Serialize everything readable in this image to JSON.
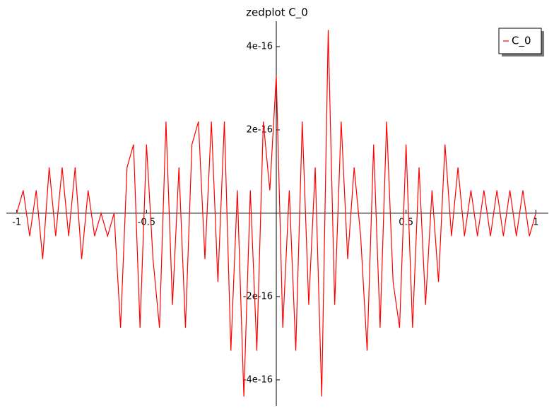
{
  "chart_data": {
    "type": "line",
    "title": "zedplot C_0",
    "x": [
      -1,
      -0.975,
      -0.95,
      -0.925,
      -0.9,
      -0.875,
      -0.85,
      -0.825,
      -0.8,
      -0.775,
      -0.75,
      -0.725,
      -0.7,
      -0.675,
      -0.65,
      -0.625,
      -0.6,
      -0.575,
      -0.55,
      -0.525,
      -0.5,
      -0.475,
      -0.45,
      -0.425,
      -0.4,
      -0.375,
      -0.35,
      -0.325,
      -0.3,
      -0.275,
      -0.25,
      -0.225,
      -0.2,
      -0.175,
      -0.15,
      -0.125,
      -0.1,
      -0.075,
      -0.05,
      -0.025,
      0,
      0.025,
      0.05,
      0.075,
      0.1,
      0.125,
      0.15,
      0.175,
      0.2,
      0.225,
      0.25,
      0.275,
      0.3,
      0.325,
      0.35,
      0.375,
      0.4,
      0.425,
      0.45,
      0.475,
      0.5,
      0.525,
      0.55,
      0.575,
      0.6,
      0.625,
      0.65,
      0.675,
      0.7,
      0.725,
      0.75,
      0.775,
      0.8,
      0.825,
      0.85,
      0.875,
      0.9,
      0.925,
      0.95,
      0.975,
      1
    ],
    "series": [
      {
        "name": "C_0",
        "color": "#ff0000",
        "values": [
          0,
          5.5e-17,
          -5.5e-17,
          5.5e-17,
          -1.1e-16,
          1.1e-16,
          -5.5e-17,
          1.1e-16,
          -5.5e-17,
          1.1e-16,
          -1.1e-16,
          5.5e-17,
          -5.5e-17,
          0,
          -5.5e-17,
          0,
          -2.75e-16,
          1.1e-16,
          1.65e-16,
          -2.75e-16,
          1.65e-16,
          -1.1e-16,
          -2.75e-16,
          2.2e-16,
          -2.2e-16,
          1.1e-16,
          -2.75e-16,
          1.65e-16,
          2.2e-16,
          -1.1e-16,
          2.2e-16,
          -1.65e-16,
          2.2e-16,
          -3.3e-16,
          5.5e-17,
          -4.4e-16,
          5.5e-17,
          -3.3e-16,
          2.2e-16,
          5.5e-17,
          3.3e-16,
          -2.75e-16,
          5.5e-17,
          -3.3e-16,
          2.2e-16,
          -2.2e-16,
          1.1e-16,
          -4.4e-16,
          4.4e-16,
          -2.2e-16,
          2.2e-16,
          -1.1e-16,
          1.1e-16,
          -5.5e-17,
          -3.3e-16,
          1.65e-16,
          -2.75e-16,
          2.2e-16,
          -1.65e-16,
          -2.75e-16,
          1.65e-16,
          -2.75e-16,
          1.1e-16,
          -2.2e-16,
          5.5e-17,
          -1.65e-16,
          1.65e-16,
          -5.5e-17,
          1.1e-16,
          -5.5e-17,
          5.5e-17,
          -5.5e-17,
          5.5e-17,
          -5.5e-17,
          5.5e-17,
          -5.5e-17,
          5.5e-17,
          -5.5e-17,
          5.5e-17,
          -5.5e-17,
          0
        ]
      }
    ],
    "xlim": [
      -1.04,
      1.04
    ],
    "xticks": [
      -1,
      -0.5,
      0.5,
      1
    ],
    "ylim": [
      -4.63e-16,
      4.61e-16
    ],
    "yticks": [
      -4e-16,
      -2e-16,
      2e-16,
      4e-16
    ],
    "legend": "upper right"
  }
}
